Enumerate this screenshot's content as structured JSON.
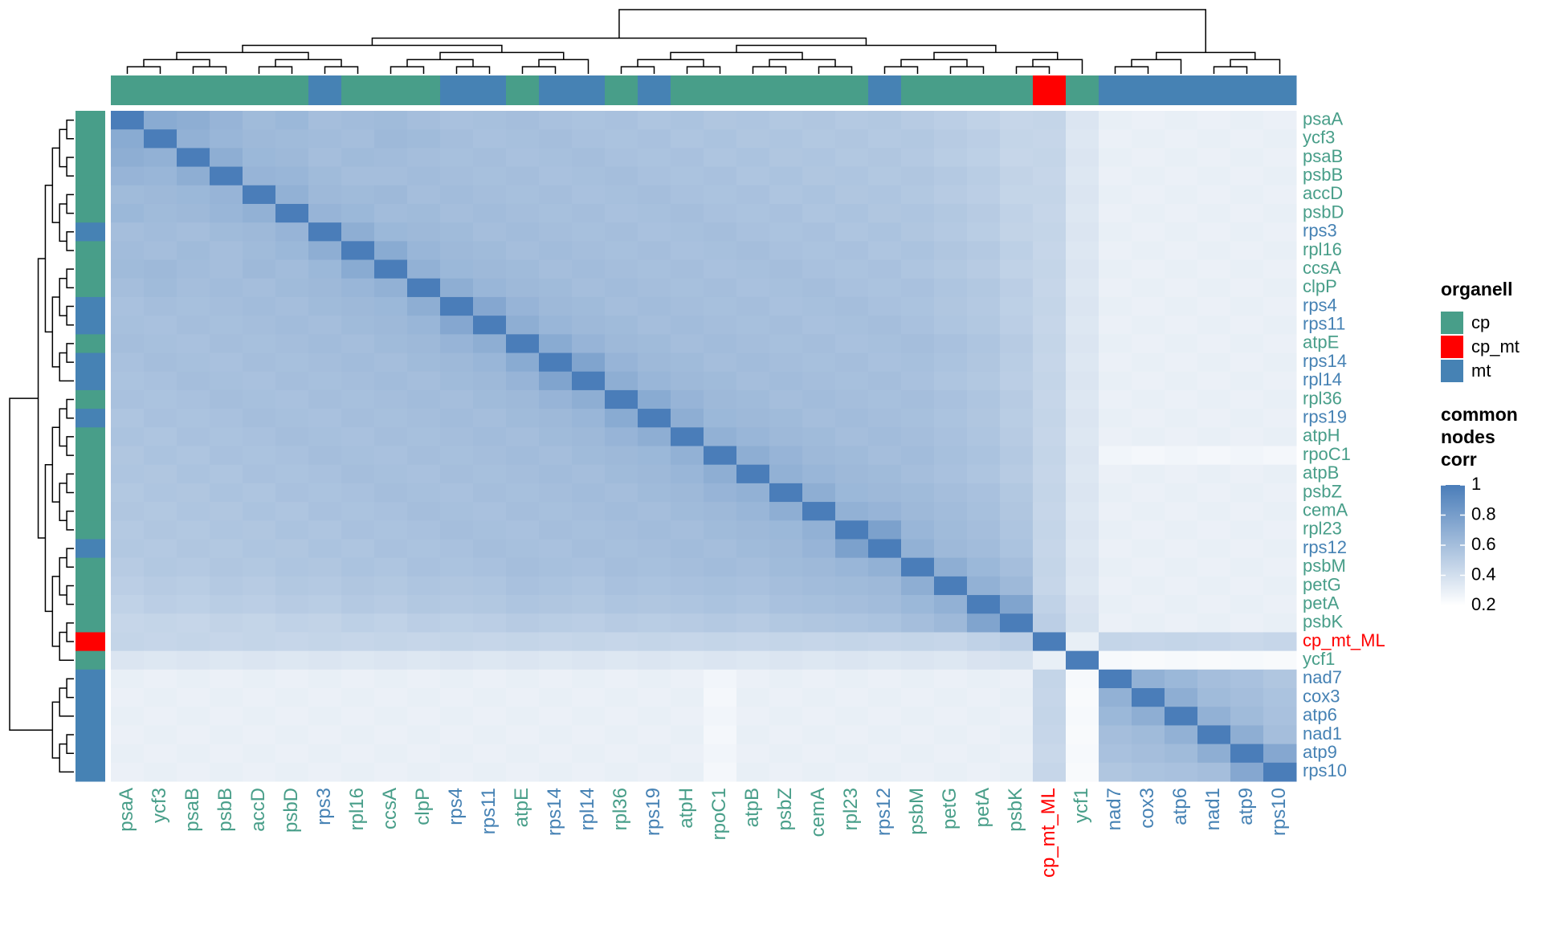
{
  "chart_data": {
    "type": "heatmap",
    "genes": [
      {
        "name": "psaA",
        "organelle": "cp"
      },
      {
        "name": "ycf3",
        "organelle": "cp"
      },
      {
        "name": "psaB",
        "organelle": "cp"
      },
      {
        "name": "psbB",
        "organelle": "cp"
      },
      {
        "name": "accD",
        "organelle": "cp"
      },
      {
        "name": "psbD",
        "organelle": "cp"
      },
      {
        "name": "rps3",
        "organelle": "mt"
      },
      {
        "name": "rpl16",
        "organelle": "cp"
      },
      {
        "name": "ccsA",
        "organelle": "cp"
      },
      {
        "name": "clpP",
        "organelle": "cp"
      },
      {
        "name": "rps4",
        "organelle": "mt"
      },
      {
        "name": "rps11",
        "organelle": "mt"
      },
      {
        "name": "atpE",
        "organelle": "cp"
      },
      {
        "name": "rps14",
        "organelle": "mt"
      },
      {
        "name": "rpl14",
        "organelle": "mt"
      },
      {
        "name": "rpl36",
        "organelle": "cp"
      },
      {
        "name": "rps19",
        "organelle": "mt"
      },
      {
        "name": "atpH",
        "organelle": "cp"
      },
      {
        "name": "rpoC1",
        "organelle": "cp"
      },
      {
        "name": "atpB",
        "organelle": "cp"
      },
      {
        "name": "psbZ",
        "organelle": "cp"
      },
      {
        "name": "cemA",
        "organelle": "cp"
      },
      {
        "name": "rpl23",
        "organelle": "cp"
      },
      {
        "name": "rps12",
        "organelle": "mt"
      },
      {
        "name": "psbM",
        "organelle": "cp"
      },
      {
        "name": "petG",
        "organelle": "cp"
      },
      {
        "name": "petA",
        "organelle": "cp"
      },
      {
        "name": "psbK",
        "organelle": "cp"
      },
      {
        "name": "cp_mt_ML",
        "organelle": "cp_mt"
      },
      {
        "name": "ycf1",
        "organelle": "cp"
      },
      {
        "name": "nad7",
        "organelle": "mt"
      },
      {
        "name": "cox3",
        "organelle": "mt"
      },
      {
        "name": "atp6",
        "organelle": "mt"
      },
      {
        "name": "nad1",
        "organelle": "mt"
      },
      {
        "name": "atp9",
        "organelle": "mt"
      },
      {
        "name": "rps10",
        "organelle": "mt"
      }
    ],
    "values": [
      [
        1
      ],
      [
        0.72,
        1
      ],
      [
        0.7,
        0.68,
        1
      ],
      [
        0.66,
        0.65,
        0.7,
        1
      ],
      [
        0.62,
        0.63,
        0.64,
        0.66,
        1
      ],
      [
        0.64,
        0.62,
        0.63,
        0.65,
        0.68,
        1
      ],
      [
        0.6,
        0.61,
        0.6,
        0.62,
        0.63,
        0.66,
        1
      ],
      [
        0.61,
        0.6,
        0.62,
        0.6,
        0.62,
        0.64,
        0.7,
        1
      ],
      [
        0.62,
        0.63,
        0.61,
        0.6,
        0.63,
        0.61,
        0.64,
        0.72,
        1
      ],
      [
        0.6,
        0.62,
        0.6,
        0.61,
        0.6,
        0.62,
        0.63,
        0.65,
        0.68,
        1
      ],
      [
        0.58,
        0.6,
        0.59,
        0.6,
        0.61,
        0.6,
        0.62,
        0.63,
        0.64,
        0.7,
        1
      ],
      [
        0.59,
        0.58,
        0.6,
        0.59,
        0.6,
        0.61,
        0.6,
        0.62,
        0.63,
        0.65,
        0.74,
        1
      ],
      [
        0.6,
        0.59,
        0.58,
        0.6,
        0.59,
        0.6,
        0.61,
        0.6,
        0.62,
        0.63,
        0.66,
        0.7,
        1
      ],
      [
        0.58,
        0.6,
        0.59,
        0.58,
        0.6,
        0.59,
        0.6,
        0.61,
        0.6,
        0.62,
        0.63,
        0.65,
        0.72,
        1
      ],
      [
        0.57,
        0.58,
        0.6,
        0.59,
        0.58,
        0.6,
        0.59,
        0.6,
        0.61,
        0.6,
        0.62,
        0.63,
        0.66,
        0.76,
        1
      ],
      [
        0.58,
        0.57,
        0.58,
        0.6,
        0.59,
        0.58,
        0.6,
        0.59,
        0.6,
        0.61,
        0.6,
        0.62,
        0.63,
        0.66,
        0.7,
        1
      ],
      [
        0.56,
        0.58,
        0.57,
        0.58,
        0.6,
        0.59,
        0.58,
        0.6,
        0.59,
        0.6,
        0.61,
        0.6,
        0.62,
        0.63,
        0.65,
        0.72,
        1
      ],
      [
        0.57,
        0.56,
        0.58,
        0.57,
        0.58,
        0.6,
        0.59,
        0.58,
        0.6,
        0.59,
        0.6,
        0.61,
        0.6,
        0.62,
        0.63,
        0.66,
        0.7,
        1
      ],
      [
        0.55,
        0.57,
        0.56,
        0.58,
        0.57,
        0.58,
        0.6,
        0.59,
        0.58,
        0.6,
        0.59,
        0.6,
        0.61,
        0.6,
        0.62,
        0.63,
        0.64,
        0.68,
        1
      ],
      [
        0.56,
        0.55,
        0.57,
        0.56,
        0.58,
        0.57,
        0.58,
        0.6,
        0.59,
        0.58,
        0.6,
        0.59,
        0.6,
        0.61,
        0.6,
        0.62,
        0.63,
        0.65,
        0.7,
        1
      ],
      [
        0.54,
        0.56,
        0.55,
        0.57,
        0.56,
        0.58,
        0.57,
        0.58,
        0.6,
        0.59,
        0.58,
        0.6,
        0.59,
        0.6,
        0.61,
        0.6,
        0.62,
        0.63,
        0.66,
        0.68,
        1
      ],
      [
        0.55,
        0.54,
        0.56,
        0.55,
        0.57,
        0.56,
        0.58,
        0.57,
        0.58,
        0.6,
        0.59,
        0.58,
        0.6,
        0.59,
        0.6,
        0.61,
        0.6,
        0.62,
        0.63,
        0.65,
        0.7,
        1
      ],
      [
        0.53,
        0.55,
        0.54,
        0.56,
        0.55,
        0.57,
        0.56,
        0.58,
        0.57,
        0.58,
        0.6,
        0.59,
        0.58,
        0.6,
        0.59,
        0.6,
        0.61,
        0.6,
        0.62,
        0.63,
        0.64,
        0.68,
        1
      ],
      [
        0.54,
        0.53,
        0.55,
        0.54,
        0.56,
        0.55,
        0.57,
        0.56,
        0.58,
        0.57,
        0.58,
        0.6,
        0.59,
        0.58,
        0.6,
        0.59,
        0.6,
        0.61,
        0.6,
        0.62,
        0.63,
        0.66,
        0.78,
        1
      ],
      [
        0.52,
        0.54,
        0.53,
        0.55,
        0.54,
        0.56,
        0.55,
        0.57,
        0.56,
        0.58,
        0.57,
        0.58,
        0.6,
        0.59,
        0.58,
        0.6,
        0.59,
        0.6,
        0.61,
        0.6,
        0.62,
        0.63,
        0.65,
        0.68,
        1
      ],
      [
        0.5,
        0.52,
        0.51,
        0.53,
        0.52,
        0.54,
        0.53,
        0.55,
        0.54,
        0.56,
        0.55,
        0.56,
        0.58,
        0.57,
        0.56,
        0.58,
        0.57,
        0.58,
        0.59,
        0.58,
        0.6,
        0.61,
        0.62,
        0.63,
        0.7,
        1
      ],
      [
        0.48,
        0.5,
        0.49,
        0.51,
        0.5,
        0.52,
        0.51,
        0.53,
        0.52,
        0.54,
        0.53,
        0.54,
        0.56,
        0.55,
        0.54,
        0.56,
        0.55,
        0.56,
        0.57,
        0.56,
        0.58,
        0.59,
        0.6,
        0.61,
        0.64,
        0.68,
        1
      ],
      [
        0.45,
        0.46,
        0.45,
        0.47,
        0.46,
        0.48,
        0.47,
        0.49,
        0.48,
        0.5,
        0.49,
        0.5,
        0.52,
        0.51,
        0.5,
        0.52,
        0.51,
        0.52,
        0.53,
        0.52,
        0.54,
        0.55,
        0.56,
        0.57,
        0.6,
        0.63,
        0.76,
        1
      ],
      [
        0.46,
        0.45,
        0.46,
        0.45,
        0.46,
        0.45,
        0.46,
        0.45,
        0.46,
        0.45,
        0.46,
        0.45,
        0.46,
        0.45,
        0.46,
        0.45,
        0.46,
        0.45,
        0.46,
        0.45,
        0.46,
        0.45,
        0.46,
        0.45,
        0.46,
        0.45,
        0.48,
        0.5,
        1
      ],
      [
        0.36,
        0.35,
        0.36,
        0.35,
        0.36,
        0.35,
        0.36,
        0.35,
        0.36,
        0.35,
        0.36,
        0.35,
        0.36,
        0.35,
        0.36,
        0.35,
        0.36,
        0.35,
        0.36,
        0.35,
        0.36,
        0.35,
        0.36,
        0.35,
        0.36,
        0.35,
        0.37,
        0.38,
        0.3,
        1
      ],
      [
        0.3,
        0.29,
        0.3,
        0.29,
        0.3,
        0.29,
        0.3,
        0.29,
        0.3,
        0.29,
        0.3,
        0.29,
        0.3,
        0.29,
        0.3,
        0.29,
        0.3,
        0.29,
        0.26,
        0.29,
        0.3,
        0.29,
        0.3,
        0.29,
        0.3,
        0.29,
        0.3,
        0.29,
        0.46,
        0.24,
        1
      ],
      [
        0.29,
        0.3,
        0.29,
        0.3,
        0.29,
        0.3,
        0.29,
        0.3,
        0.29,
        0.3,
        0.29,
        0.3,
        0.29,
        0.3,
        0.29,
        0.3,
        0.29,
        0.3,
        0.25,
        0.3,
        0.29,
        0.3,
        0.29,
        0.3,
        0.29,
        0.3,
        0.29,
        0.3,
        0.45,
        0.23,
        0.68,
        1
      ],
      [
        0.3,
        0.29,
        0.3,
        0.29,
        0.3,
        0.29,
        0.3,
        0.29,
        0.3,
        0.29,
        0.3,
        0.29,
        0.3,
        0.29,
        0.3,
        0.29,
        0.3,
        0.29,
        0.26,
        0.29,
        0.3,
        0.29,
        0.3,
        0.29,
        0.3,
        0.29,
        0.3,
        0.29,
        0.46,
        0.24,
        0.64,
        0.7,
        1
      ],
      [
        0.29,
        0.3,
        0.29,
        0.3,
        0.29,
        0.3,
        0.29,
        0.3,
        0.29,
        0.3,
        0.29,
        0.3,
        0.29,
        0.3,
        0.29,
        0.3,
        0.29,
        0.3,
        0.25,
        0.3,
        0.29,
        0.3,
        0.29,
        0.3,
        0.29,
        0.3,
        0.29,
        0.3,
        0.45,
        0.23,
        0.6,
        0.62,
        0.68,
        1
      ],
      [
        0.3,
        0.29,
        0.3,
        0.29,
        0.3,
        0.29,
        0.3,
        0.29,
        0.3,
        0.29,
        0.3,
        0.29,
        0.3,
        0.29,
        0.3,
        0.29,
        0.3,
        0.29,
        0.26,
        0.29,
        0.3,
        0.29,
        0.3,
        0.29,
        0.3,
        0.29,
        0.3,
        0.29,
        0.44,
        0.24,
        0.58,
        0.6,
        0.62,
        0.7,
        1
      ],
      [
        0.29,
        0.3,
        0.29,
        0.3,
        0.29,
        0.3,
        0.29,
        0.3,
        0.29,
        0.3,
        0.29,
        0.3,
        0.29,
        0.3,
        0.29,
        0.3,
        0.29,
        0.3,
        0.25,
        0.3,
        0.29,
        0.3,
        0.29,
        0.3,
        0.29,
        0.3,
        0.29,
        0.3,
        0.45,
        0.23,
        0.55,
        0.57,
        0.58,
        0.6,
        0.74,
        1
      ]
    ],
    "legend": {
      "title": "organell",
      "items": [
        {
          "name": "cp",
          "color": "#489e89"
        },
        {
          "name": "cp_mt",
          "color": "#ff0000"
        },
        {
          "name": "mt",
          "color": "#4682b4"
        }
      ]
    },
    "colorbar": {
      "title": [
        "common",
        "nodes",
        "corr"
      ],
      "lim": [
        0.2,
        1
      ],
      "ticks": [
        1,
        0.8,
        0.6,
        0.4,
        0.2
      ],
      "colors": [
        "#ffffff",
        "#4a7db9"
      ]
    }
  }
}
